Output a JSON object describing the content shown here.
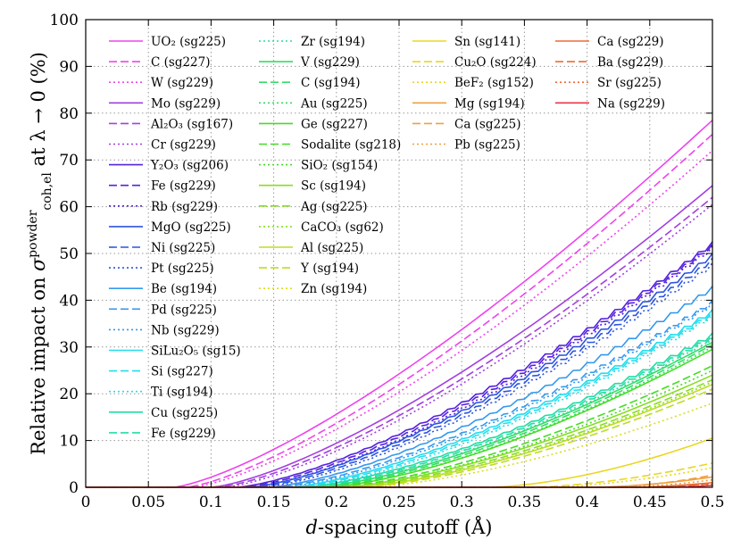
{
  "chart_data": {
    "type": "line",
    "xlabel": "d-spacing cutoff (Å)",
    "xlabel_italic_part": "d",
    "xlabel_rest": "-spacing cutoff (Å)",
    "ylabel_pre": "Relative impact on ",
    "ylabel_symbol": "σ",
    "ylabel_sup": "powder",
    "ylabel_sub": "coh,el",
    "ylabel_post": " at λ → 0 (%)",
    "xlim": [
      0,
      0.5
    ],
    "ylim": [
      0,
      100
    ],
    "xticks": [
      0,
      0.05,
      0.1,
      0.15,
      0.2,
      0.25,
      0.3,
      0.35,
      0.4,
      0.45,
      0.5
    ],
    "xtick_labels": [
      "0",
      "0.05",
      "0.1",
      "0.15",
      "0.2",
      "0.25",
      "0.3",
      "0.35",
      "0.4",
      "0.45",
      "0.5"
    ],
    "yticks": [
      0,
      10,
      20,
      30,
      40,
      50,
      60,
      70,
      80,
      90,
      100
    ],
    "ytick_labels": [
      "0",
      "10",
      "20",
      "30",
      "40",
      "50",
      "60",
      "70",
      "80",
      "90",
      "100"
    ],
    "grid": true,
    "legend_position": "top-left, four columns",
    "series": [
      {
        "name": "UO₂ (sg225)",
        "color": "#ee44ee",
        "dash": "solid",
        "onset": 0.07,
        "end": 78.5
      },
      {
        "name": "C (sg227)",
        "color": "#ee44ee",
        "dash": "dashed",
        "onset": 0.08,
        "end": 75.5
      },
      {
        "name": "W (sg229)",
        "color": "#ee44ee",
        "dash": "dotted",
        "onset": 0.085,
        "end": 72
      },
      {
        "name": "Mo (sg229)",
        "color": "#a33fe0",
        "dash": "solid",
        "onset": 0.1,
        "end": 64.5
      },
      {
        "name": "Al₂O₃ (sg167)",
        "color": "#a33fe0",
        "dash": "dashed",
        "onset": 0.105,
        "end": 62
      },
      {
        "name": "Cr (sg229)",
        "color": "#a33fe0",
        "dash": "dotted",
        "onset": 0.11,
        "end": 60.5
      },
      {
        "name": "Y₂O₃ (sg206)",
        "color": "#5522dd",
        "dash": "solid",
        "onset": 0.12,
        "end": 52.5
      },
      {
        "name": "Fe (sg229)",
        "color": "#5522dd",
        "dash": "dashed",
        "onset": 0.125,
        "end": 52
      },
      {
        "name": "Rb (sg229)",
        "color": "#5522dd",
        "dash": "dotted",
        "onset": 0.13,
        "end": 51.5
      },
      {
        "name": "MgO (sg225)",
        "color": "#2b55e0",
        "dash": "solid",
        "onset": 0.13,
        "end": 50
      },
      {
        "name": "Ni (sg225)",
        "color": "#2b55e0",
        "dash": "dashed",
        "onset": 0.135,
        "end": 49
      },
      {
        "name": "Pt (sg225)",
        "color": "#2b55e0",
        "dash": "dotted",
        "onset": 0.14,
        "end": 48
      },
      {
        "name": "Be (sg194)",
        "color": "#3399ee",
        "dash": "solid",
        "onset": 0.145,
        "end": 43
      },
      {
        "name": "Pd (sg225)",
        "color": "#3399ee",
        "dash": "dashed",
        "onset": 0.15,
        "end": 40
      },
      {
        "name": "Nb (sg229)",
        "color": "#3399ee",
        "dash": "dotted",
        "onset": 0.155,
        "end": 39.5
      },
      {
        "name": "SiLu₂O₅ (sg15)",
        "color": "#22ddee",
        "dash": "solid",
        "onset": 0.16,
        "end": 38
      },
      {
        "name": "Si (sg227)",
        "color": "#22ddee",
        "dash": "dashed",
        "onset": 0.165,
        "end": 37.5
      },
      {
        "name": "Ti (sg194)",
        "color": "#22ddee",
        "dash": "dotted",
        "onset": 0.17,
        "end": 37
      },
      {
        "name": "Cu (sg225)",
        "color": "#22dda5",
        "dash": "solid",
        "onset": 0.17,
        "end": 33
      },
      {
        "name": "Fe (sg229)",
        "color": "#22dda5",
        "dash": "dashed",
        "onset": 0.175,
        "end": 32.5
      },
      {
        "name": "Zr (sg194)",
        "color": "#22dda5",
        "dash": "dotted",
        "onset": 0.18,
        "end": 32
      },
      {
        "name": "V (sg229)",
        "color": "#33dd66",
        "dash": "solid",
        "onset": 0.18,
        "end": 31
      },
      {
        "name": "C (sg194)",
        "color": "#33dd66",
        "dash": "dashed",
        "onset": 0.185,
        "end": 30.5
      },
      {
        "name": "Au (sg225)",
        "color": "#33dd66",
        "dash": "dotted",
        "onset": 0.19,
        "end": 30
      },
      {
        "name": "Ge (sg227)",
        "color": "#44dd22",
        "dash": "solid",
        "onset": 0.19,
        "end": 29.5
      },
      {
        "name": "Sodalite (sg218)",
        "color": "#44dd22",
        "dash": "dashed",
        "onset": 0.195,
        "end": 26
      },
      {
        "name": "SiO₂ (sg154)",
        "color": "#44dd22",
        "dash": "dotted",
        "onset": 0.2,
        "end": 25
      },
      {
        "name": "Sc (sg194)",
        "color": "#88dd22",
        "dash": "solid",
        "onset": 0.2,
        "end": 24
      },
      {
        "name": "Ag (sg225)",
        "color": "#88dd22",
        "dash": "dashed",
        "onset": 0.205,
        "end": 23
      },
      {
        "name": "CaCO₃ (sg62)",
        "color": "#88dd22",
        "dash": "dotted",
        "onset": 0.21,
        "end": 22.5
      },
      {
        "name": "Al (sg225)",
        "color": "#bbdd22",
        "dash": "solid",
        "onset": 0.21,
        "end": 22
      },
      {
        "name": "Y (sg194)",
        "color": "#bbdd22",
        "dash": "dashed",
        "onset": 0.215,
        "end": 21
      },
      {
        "name": "Zn (sg194)",
        "color": "#dddd22",
        "dash": "dotted",
        "onset": 0.22,
        "end": 18
      },
      {
        "name": "Sn (sg141)",
        "color": "#e8d820",
        "dash": "solid",
        "onset": 0.32,
        "end": 10.5
      },
      {
        "name": "Cu₂O (sg224)",
        "color": "#e8d820",
        "dash": "dashed",
        "onset": 0.35,
        "end": 5.2
      },
      {
        "name": "BeF₂ (sg152)",
        "color": "#e8d820",
        "dash": "dotted",
        "onset": 0.36,
        "end": 4.2
      },
      {
        "name": "Mg (sg194)",
        "color": "#f0a040",
        "dash": "solid",
        "onset": 0.4,
        "end": 2.2
      },
      {
        "name": "Ca (sg225)",
        "color": "#f0a040",
        "dash": "dashed",
        "onset": 0.41,
        "end": 2.6
      },
      {
        "name": "Pb (sg225)",
        "color": "#f0a040",
        "dash": "dotted",
        "onset": 0.42,
        "end": 1.6
      },
      {
        "name": "Ca (sg229)",
        "color": "#ee6a33",
        "dash": "solid",
        "onset": 0.43,
        "end": 1.0
      },
      {
        "name": "Ba (sg229)",
        "color": "#ee6a33",
        "dash": "dashed",
        "onset": 0.44,
        "end": 0.8
      },
      {
        "name": "Sr (sg225)",
        "color": "#ee6a33",
        "dash": "dotted",
        "onset": 0.45,
        "end": 0.6
      },
      {
        "name": "Na (sg229)",
        "color": "#ee3344",
        "dash": "solid",
        "onset": 0.46,
        "end": 0.4
      }
    ]
  }
}
